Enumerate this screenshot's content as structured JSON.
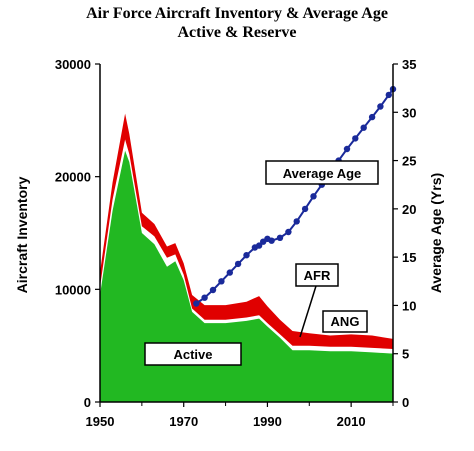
{
  "chart_data": {
    "type": "area",
    "title": "Air Force Aircraft Inventory & Average Age",
    "subtitle": "Active & Reserve",
    "ylabel": "Aircraft Inventory",
    "y2label": "Average Age (Yrs)",
    "xlim": [
      1950,
      2020
    ],
    "ylim": [
      0,
      30000
    ],
    "y2lim": [
      0,
      35
    ],
    "x_ticks": [
      "1950",
      "1970",
      "1990",
      "2010"
    ],
    "y_ticks": [
      "0",
      "10000",
      "20000",
      "30000"
    ],
    "y2_ticks": [
      "0",
      "5",
      "10",
      "15",
      "20",
      "25",
      "30",
      "35"
    ],
    "series": [
      {
        "name": "Active",
        "color": "#22b822",
        "x": [
          1950,
          1953,
          1956,
          1957,
          1960,
          1963,
          1966,
          1968,
          1970,
          1972,
          1975,
          1980,
          1985,
          1988,
          1990,
          1993,
          1996,
          2000,
          2005,
          2010,
          2015,
          2020
        ],
        "values": [
          9500,
          17000,
          22300,
          21300,
          15000,
          14000,
          12000,
          12500,
          10800,
          8000,
          7000,
          7000,
          7200,
          7400,
          6700,
          5700,
          4600,
          4600,
          4500,
          4500,
          4400,
          4300
        ]
      },
      {
        "name": "ANG",
        "color": "#ffffff",
        "x": [
          1950,
          1953,
          1956,
          1957,
          1960,
          1963,
          1966,
          1968,
          1970,
          1972,
          1975,
          1980,
          1985,
          1988,
          1990,
          1993,
          1996,
          2000,
          2005,
          2010,
          2015,
          2020
        ],
        "values": [
          10200,
          18000,
          23300,
          22000,
          15600,
          14700,
          12800,
          13100,
          11300,
          8300,
          7300,
          7300,
          7500,
          7700,
          7000,
          6000,
          5000,
          5000,
          4900,
          4900,
          4800,
          4700
        ]
      },
      {
        "name": "AFR",
        "color": "#e00000",
        "x": [
          1950,
          1953,
          1956,
          1957,
          1960,
          1963,
          1966,
          1968,
          1970,
          1972,
          1975,
          1980,
          1985,
          1988,
          1990,
          1993,
          1996,
          2000,
          2005,
          2010,
          2015,
          2020
        ],
        "values": [
          11500,
          19500,
          25600,
          23800,
          16800,
          15800,
          13800,
          14100,
          12300,
          9500,
          8600,
          8600,
          8900,
          9400,
          8500,
          7300,
          6300,
          6100,
          5900,
          6000,
          5900,
          5600
        ]
      },
      {
        "name": "Average Age",
        "axis": "right",
        "color": "#1a2a9a",
        "x": [
          1973,
          1975,
          1977,
          1979,
          1981,
          1983,
          1985,
          1987,
          1988,
          1989,
          1990,
          1991,
          1993,
          1995,
          1997,
          1999,
          2001,
          2003,
          2005,
          2007,
          2009,
          2011,
          2013,
          2015,
          2017,
          2019,
          2020
        ],
        "values": [
          10.2,
          10.8,
          11.6,
          12.5,
          13.4,
          14.3,
          15.2,
          16.0,
          16.2,
          16.6,
          16.9,
          16.7,
          17.0,
          17.6,
          18.7,
          20.0,
          21.3,
          22.5,
          23.8,
          25.0,
          26.2,
          27.3,
          28.4,
          29.5,
          30.6,
          31.8,
          32.4
        ]
      }
    ],
    "annotations": {
      "average_age": "Average Age",
      "afr": "AFR",
      "ang": "ANG",
      "active": "Active"
    },
    "grid": false
  }
}
